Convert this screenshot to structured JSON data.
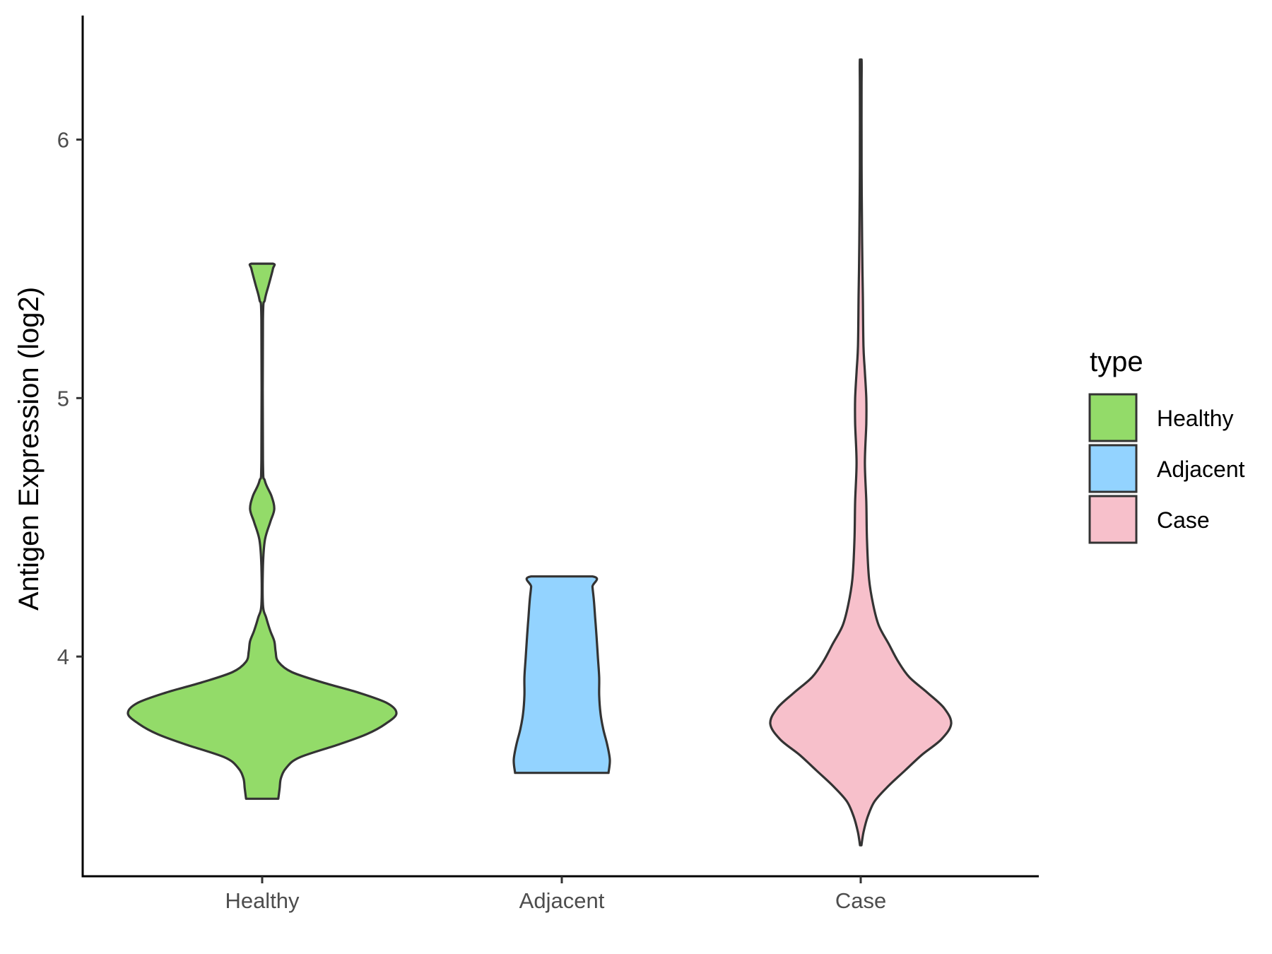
{
  "chart_data": {
    "type": "violin",
    "title": "",
    "xlabel": "",
    "ylabel": "Antigen Expression (log2)",
    "ylim": [
      3.15,
      6.48
    ],
    "yticks": [
      4,
      5,
      6
    ],
    "categories": [
      "Healthy",
      "Adjacent",
      "Case"
    ],
    "colors": [
      "#93db69",
      "#93d3ff",
      "#f7c0cb"
    ],
    "grid": false,
    "legend": {
      "title": "type",
      "position": "right",
      "entries": [
        "Healthy",
        "Adjacent",
        "Case"
      ]
    },
    "series": [
      {
        "name": "Healthy",
        "min": 3.45,
        "max": 5.52,
        "median_region": 3.78,
        "density": [
          [
            3.45,
            0.12
          ],
          [
            3.49,
            0.13
          ],
          [
            3.53,
            0.14
          ],
          [
            3.57,
            0.18
          ],
          [
            3.61,
            0.28
          ],
          [
            3.66,
            0.57
          ],
          [
            3.7,
            0.78
          ],
          [
            3.74,
            0.92
          ],
          [
            3.78,
            1.0
          ],
          [
            3.82,
            0.93
          ],
          [
            3.86,
            0.72
          ],
          [
            3.9,
            0.45
          ],
          [
            3.94,
            0.22
          ],
          [
            3.98,
            0.12
          ],
          [
            4.02,
            0.1
          ],
          [
            4.06,
            0.09
          ],
          [
            4.1,
            0.06
          ],
          [
            4.15,
            0.03
          ],
          [
            4.2,
            0.006
          ],
          [
            4.35,
            0.006
          ],
          [
            4.45,
            0.02
          ],
          [
            4.52,
            0.06
          ],
          [
            4.57,
            0.09
          ],
          [
            4.62,
            0.07
          ],
          [
            4.68,
            0.02
          ],
          [
            4.76,
            0.006
          ],
          [
            5.3,
            0.006
          ],
          [
            5.38,
            0.02
          ],
          [
            5.44,
            0.05
          ],
          [
            5.5,
            0.08
          ],
          [
            5.52,
            0.08
          ]
        ]
      },
      {
        "name": "Adjacent",
        "min": 3.55,
        "max": 4.31,
        "density": [
          [
            3.55,
            0.35
          ],
          [
            3.6,
            0.36
          ],
          [
            3.66,
            0.34
          ],
          [
            3.72,
            0.31
          ],
          [
            3.78,
            0.29
          ],
          [
            3.85,
            0.28
          ],
          [
            3.92,
            0.28
          ],
          [
            4.0,
            0.27
          ],
          [
            4.08,
            0.26
          ],
          [
            4.15,
            0.25
          ],
          [
            4.22,
            0.24
          ],
          [
            4.27,
            0.23
          ],
          [
            4.31,
            0.23
          ]
        ]
      },
      {
        "name": "Case",
        "min": 3.27,
        "max": 6.31,
        "density": [
          [
            3.27,
            0.005
          ],
          [
            3.32,
            0.02
          ],
          [
            3.38,
            0.05
          ],
          [
            3.44,
            0.1
          ],
          [
            3.5,
            0.2
          ],
          [
            3.56,
            0.32
          ],
          [
            3.62,
            0.44
          ],
          [
            3.68,
            0.58
          ],
          [
            3.74,
            0.65
          ],
          [
            3.8,
            0.6
          ],
          [
            3.86,
            0.48
          ],
          [
            3.92,
            0.35
          ],
          [
            3.98,
            0.27
          ],
          [
            4.05,
            0.2
          ],
          [
            4.12,
            0.13
          ],
          [
            4.2,
            0.09
          ],
          [
            4.3,
            0.06
          ],
          [
            4.45,
            0.045
          ],
          [
            4.6,
            0.04
          ],
          [
            4.75,
            0.03
          ],
          [
            4.9,
            0.04
          ],
          [
            5.0,
            0.04
          ],
          [
            5.1,
            0.03
          ],
          [
            5.2,
            0.02
          ],
          [
            5.4,
            0.015
          ],
          [
            5.6,
            0.01
          ],
          [
            5.8,
            0.007
          ],
          [
            6.0,
            0.006
          ],
          [
            6.2,
            0.006
          ],
          [
            6.31,
            0.006
          ]
        ]
      }
    ]
  }
}
